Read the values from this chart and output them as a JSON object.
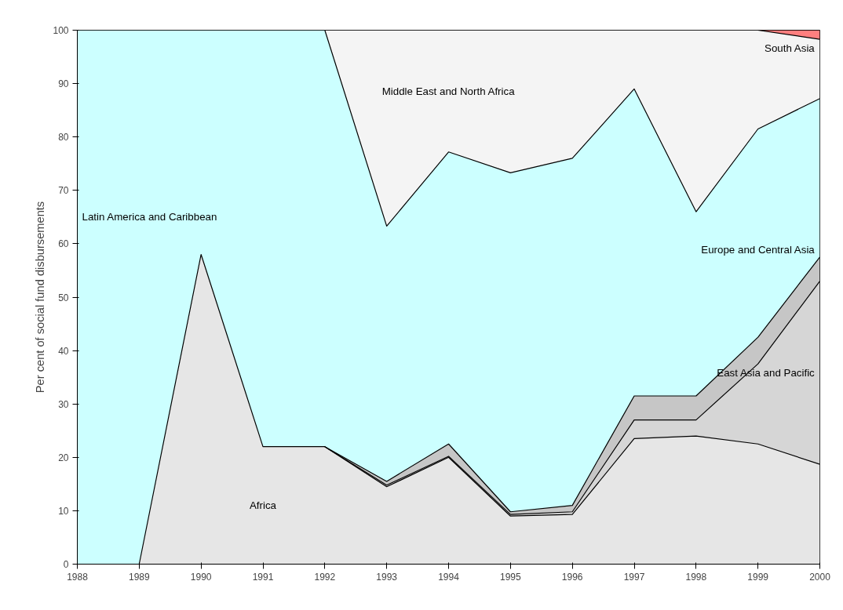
{
  "chart_data": {
    "type": "area",
    "stacked": true,
    "ylabel": "Per cent of social fund disbursements",
    "x": [
      1988,
      1989,
      1990,
      1991,
      1992,
      1993,
      1994,
      1995,
      1996,
      1997,
      1998,
      1999,
      2000
    ],
    "series": [
      {
        "name": "Africa",
        "color": "#e6e6e6",
        "values": [
          null,
          0,
          58,
          22,
          22,
          14.5,
          20,
          9,
          9.3,
          23.5,
          24,
          22.5,
          18.7
        ]
      },
      {
        "name": "East Asia and Pacific",
        "color": "#d6d6d6",
        "values": [
          null,
          null,
          null,
          null,
          0,
          0.3,
          0.2,
          0.3,
          0.5,
          3.5,
          3,
          15,
          34.3
        ]
      },
      {
        "name": "Europe and Central Asia",
        "color": "#c6c6c6",
        "values": [
          null,
          null,
          null,
          null,
          0,
          0.7,
          2.3,
          0.5,
          1.2,
          4.5,
          4.5,
          5,
          4.5
        ]
      },
      {
        "name": "Latin America and Caribbean",
        "color": "#ccffff",
        "values": [
          100,
          100,
          42,
          78,
          78,
          47.8,
          54.7,
          63.5,
          65,
          57.5,
          34.5,
          39,
          29.7
        ]
      },
      {
        "name": "Middle East and North Africa",
        "color": "#f4f4f4",
        "values": [
          null,
          null,
          null,
          null,
          0,
          36.7,
          22.8,
          26.7,
          24,
          11,
          34,
          18.5,
          11.1
        ]
      },
      {
        "name": "South Asia",
        "color": "#ff7f7f",
        "values": [
          null,
          null,
          null,
          null,
          null,
          null,
          null,
          null,
          null,
          null,
          null,
          0,
          1.7
        ]
      }
    ],
    "xlim": [
      1988,
      2000
    ],
    "xticks": [
      1988,
      1989,
      1990,
      1991,
      1992,
      1993,
      1994,
      1995,
      1996,
      1997,
      1998,
      1999,
      2000
    ],
    "ylim": [
      0,
      100
    ],
    "yticks": [
      0,
      10,
      20,
      30,
      40,
      50,
      60,
      70,
      80,
      90,
      100
    ],
    "grid": false,
    "legend": false
  }
}
